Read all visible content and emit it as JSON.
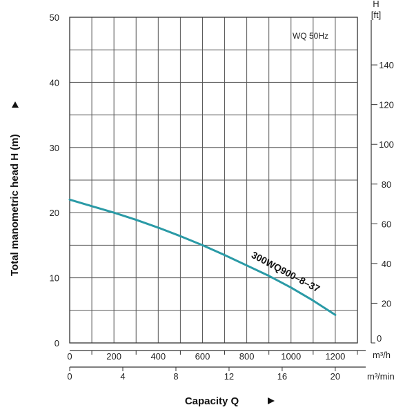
{
  "chart_data": {
    "type": "line",
    "annotation": "WQ  50Hz",
    "ylabel": "Total manometric head H (m)",
    "xlabel": "Capacity Q",
    "ylim": [
      0,
      50
    ],
    "yticks": [
      "0",
      "10",
      "20",
      "30",
      "40",
      "50"
    ],
    "y2_label_top": "H",
    "y2_label_unit": "[ft]",
    "y2lim": [
      0,
      164
    ],
    "y2ticks": [
      "0",
      "20",
      "40",
      "60",
      "80",
      "100",
      "120",
      "140"
    ],
    "x_m3h": {
      "unit": "m³/h",
      "range": [
        0,
        1300
      ],
      "ticks": [
        "0",
        "200",
        "400",
        "600",
        "800",
        "1000",
        "1200"
      ]
    },
    "x_m3min": {
      "unit": "m³/min",
      "range": [
        0,
        21.667
      ],
      "ticks": [
        "0",
        "4",
        "8",
        "12",
        "16",
        "20"
      ]
    },
    "grid": true,
    "series": [
      {
        "name": "300WQ900–8–37",
        "color": "#2a9aa6",
        "x": [
          0,
          100,
          200,
          300,
          400,
          500,
          600,
          700,
          800,
          900,
          1000,
          1100,
          1200
        ],
        "y": [
          22,
          21,
          20,
          18.9,
          17.7,
          16.4,
          15,
          13.5,
          11.9,
          10.3,
          8.5,
          6.5,
          4.3
        ]
      }
    ]
  }
}
